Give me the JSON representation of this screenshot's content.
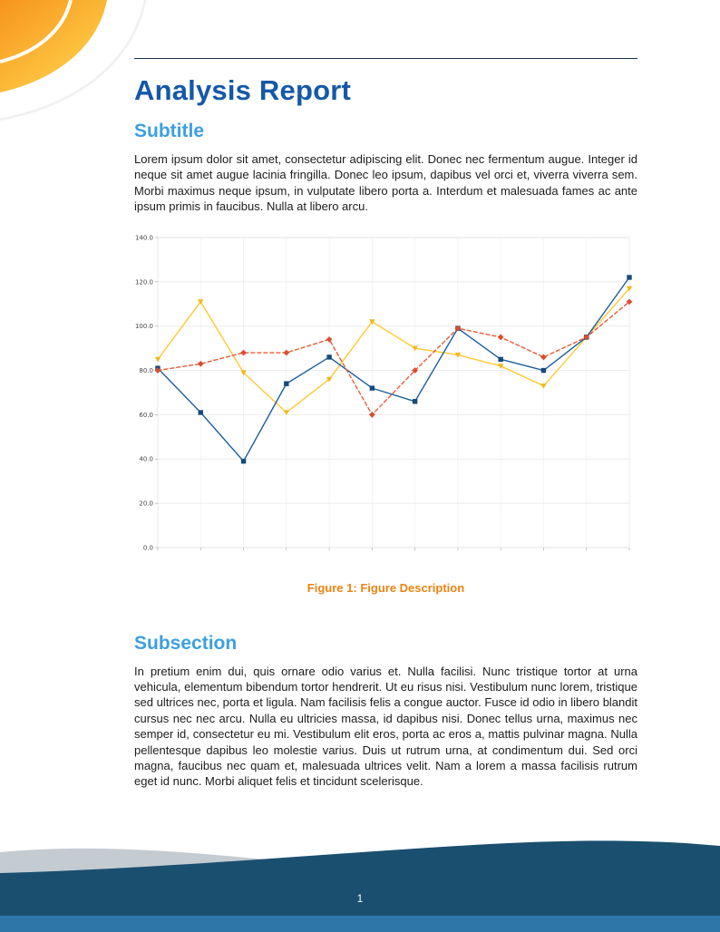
{
  "page": {
    "title": "Analysis Report",
    "page_number": "1"
  },
  "sections": [
    {
      "heading": "Subtitle",
      "body": "Lorem ipsum dolor sit amet, consectetur adipiscing elit. Donec nec fermentum augue. Integer id neque sit amet augue lacinia fringilla. Donec leo ipsum, dapibus vel orci et, viverra viverra sem. Morbi maximus neque ipsum, in vulputate libero porta a. Interdum et malesuada fames ac ante ipsum primis in faucibus. Nulla at libero arcu."
    },
    {
      "heading": "Subsection",
      "body": "In pretium enim dui, quis ornare odio varius et. Nulla facilisi. Nunc tristique tortor at urna vehicula, elementum bibendum tortor hendrerit. Ut eu risus nisi. Vestibulum nunc lorem, tristique sed ultrices nec, porta et ligula. Nam facilisis felis a congue auctor. Fusce id odio in libero blandit cursus nec nec arcu. Nulla eu ultricies massa, id dapibus nisi. Donec tellus urna, maximus nec semper id, consectetur eu mi. Vestibulum elit eros, porta ac eros a, mattis pulvinar magna. Nulla pellentesque dapibus leo molestie varius. Duis ut rutrum urna, at condimentum dui. Sed orci magna, faucibus nec quam et, malesuada ultrices velit. Nam a lorem a massa facilisis rutrum eget id nunc. Morbi aliquet felis et tincidunt scelerisque."
    }
  ],
  "figure": {
    "caption_label": "Figure 1:",
    "caption_text": "Figure Description"
  },
  "theme": {
    "title_blue": "#1558a7",
    "heading_blue": "#3d9fe0",
    "caption_orange": "#ee8312",
    "footer_navy": "#1a4f70",
    "footer_strip_blue": "#2e76a8",
    "wave_gray": "#c4ccd2",
    "corner_orange": "#f7941e",
    "corner_yellow": "#ffd84d",
    "rule_color": "#16354f",
    "text_color": "#1c1c1c"
  },
  "chart_data": {
    "type": "line",
    "title": "",
    "xlabel": "",
    "ylabel": "",
    "x": [
      1,
      2,
      3,
      4,
      5,
      6,
      7,
      8,
      9,
      10,
      11,
      12
    ],
    "xtick_labels": [
      "",
      "",
      "",
      "",
      "",
      "",
      "",
      "",
      "",
      "",
      "",
      ""
    ],
    "ylim": [
      0,
      140
    ],
    "ytick_step": 20,
    "ytick_labels": [
      "0.0",
      "20.0",
      "40.0",
      "60.0",
      "80.0",
      "100.0",
      "120.0",
      "140.0"
    ],
    "grid": true,
    "legend": "none",
    "series": [
      {
        "name": "series-yellow",
        "color": "#ffc933",
        "marker_color": "#f2b71c",
        "marker": "triangle",
        "dash": null,
        "values": [
          85,
          111,
          79,
          61,
          76,
          102,
          90,
          87,
          82,
          73,
          95,
          117
        ]
      },
      {
        "name": "series-blue",
        "color": "#1d5fa0",
        "marker_color": "#17497a",
        "marker": "square",
        "dash": null,
        "values": [
          81,
          61,
          39,
          74,
          86,
          72,
          66,
          99,
          85,
          80,
          95,
          122
        ]
      },
      {
        "name": "series-red",
        "color": "#e55d3a",
        "marker_color": "#d9502e",
        "marker": "diamond",
        "dash": "4,3",
        "values": [
          80,
          83,
          88,
          88,
          94,
          60,
          80,
          99,
          95,
          86,
          95,
          111
        ]
      }
    ]
  }
}
